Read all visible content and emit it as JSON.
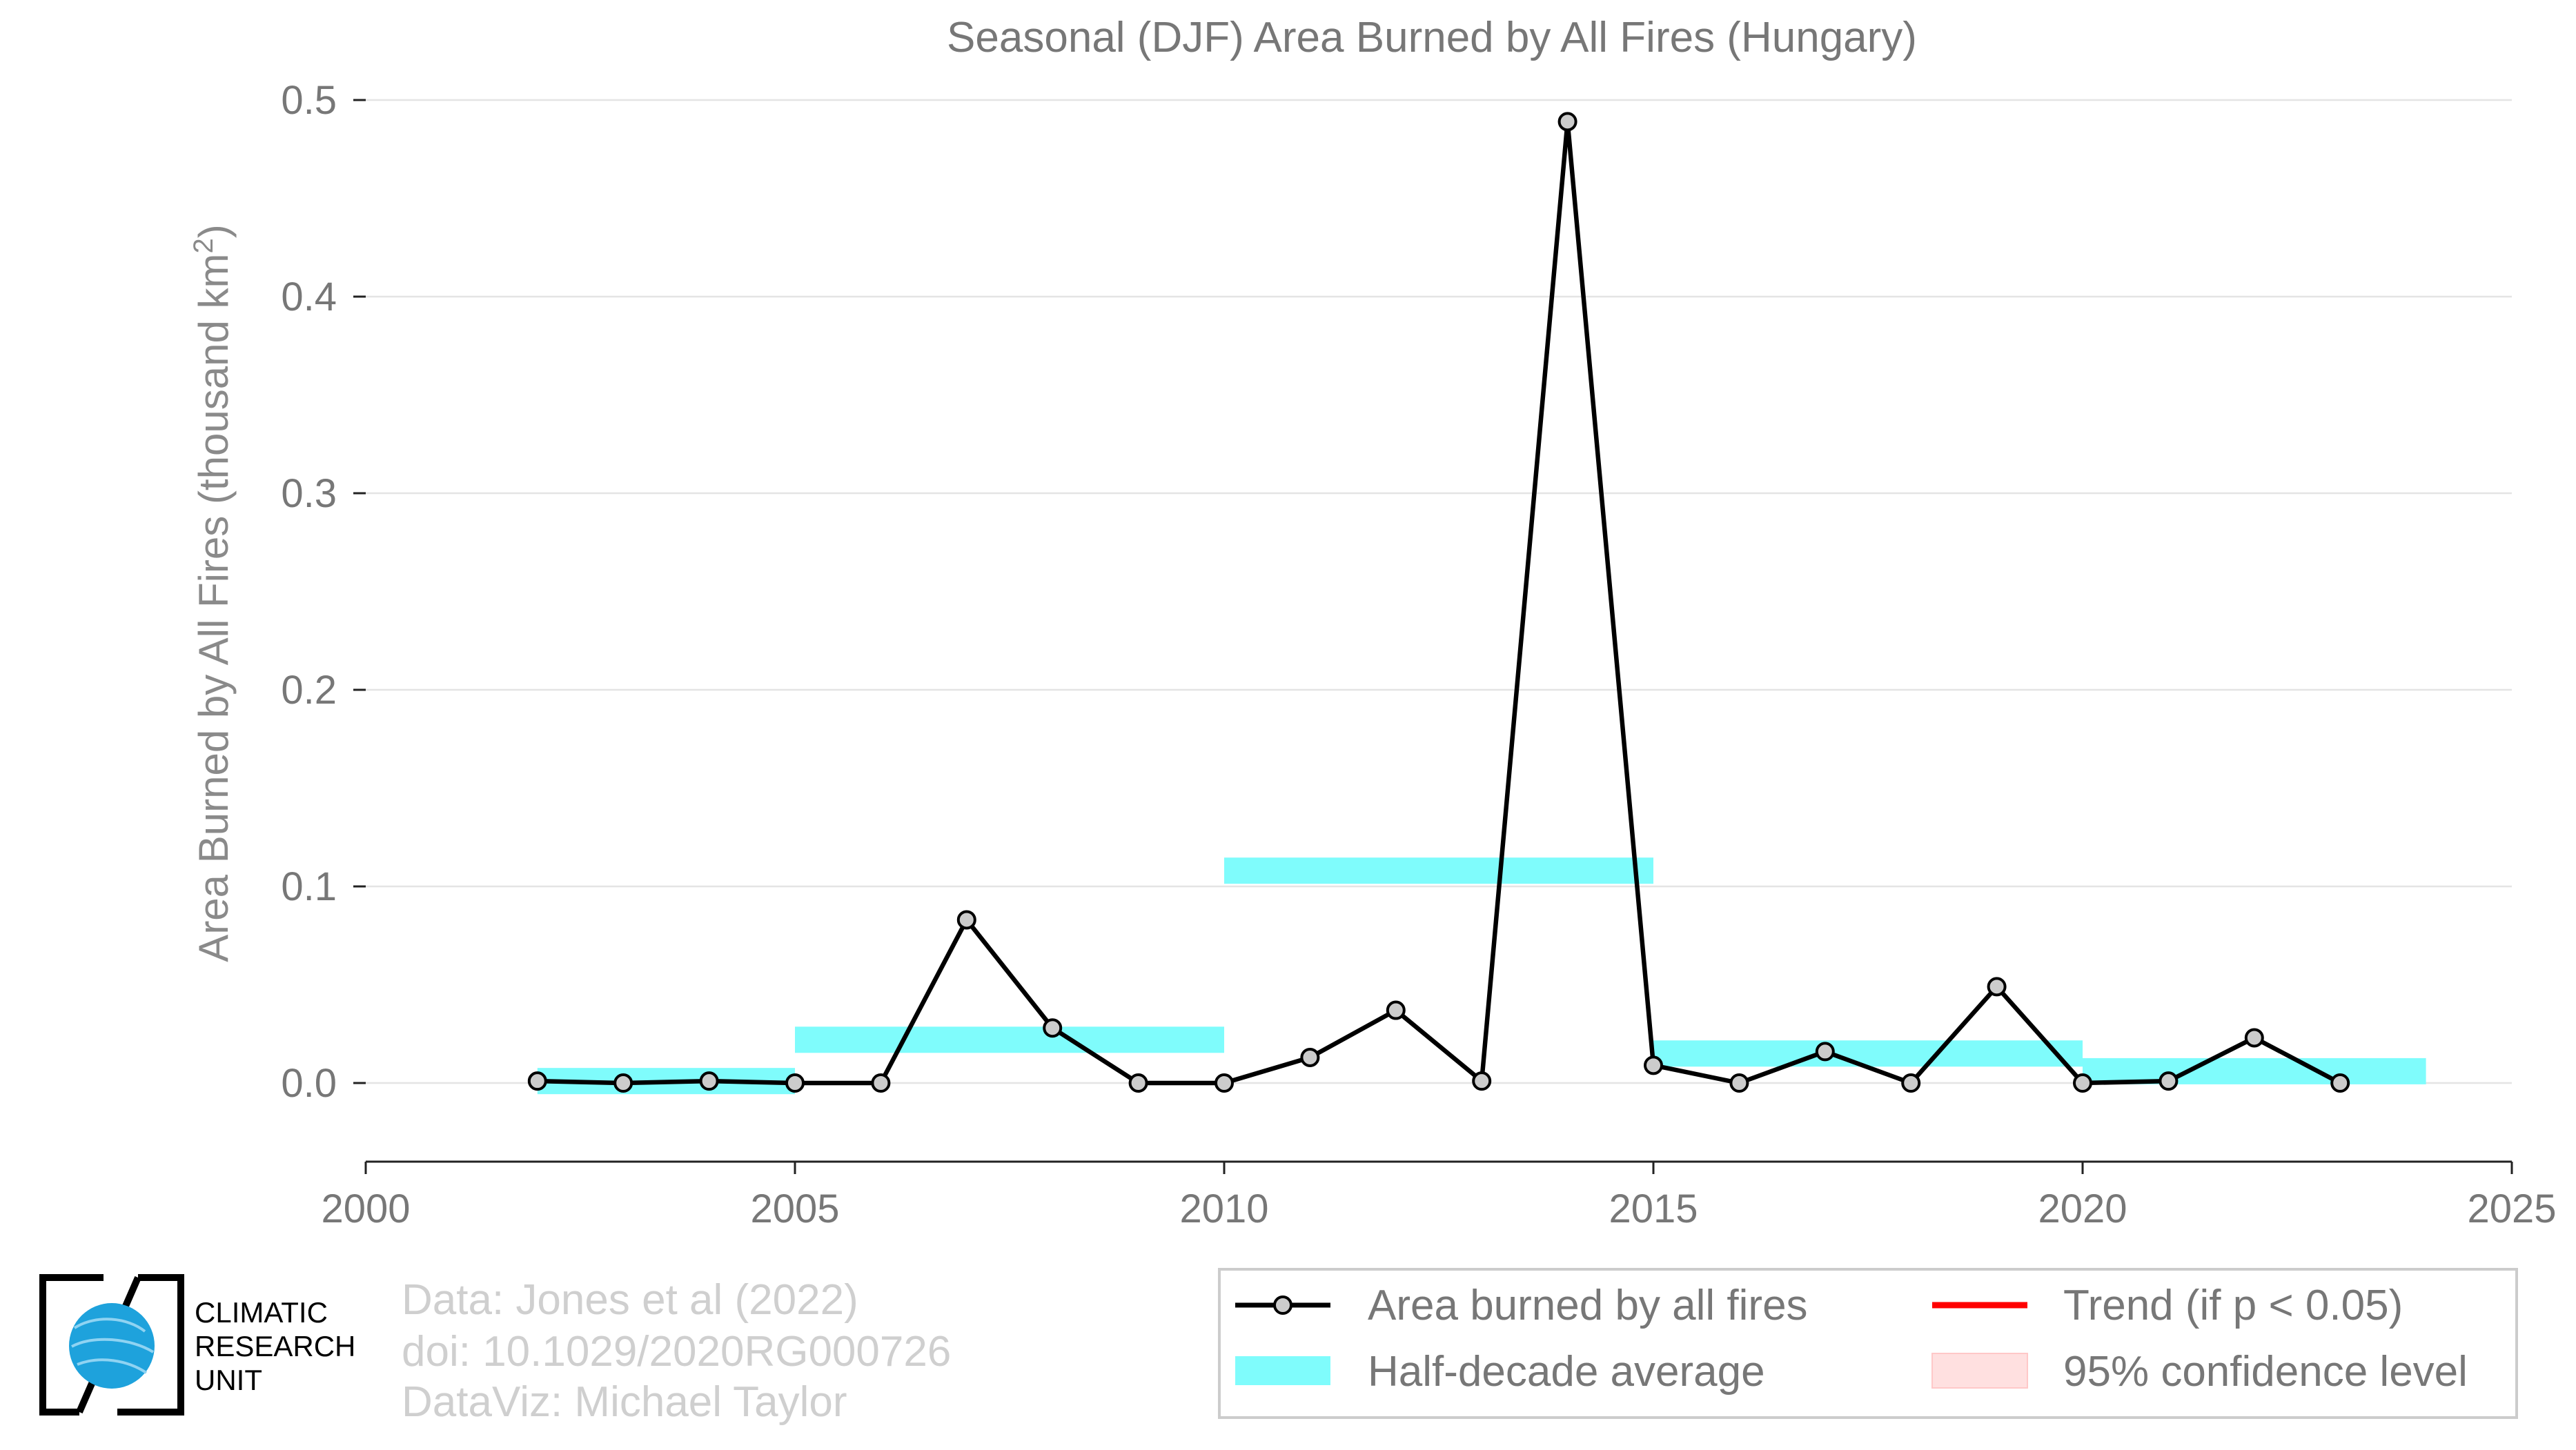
{
  "chart_data": {
    "type": "line",
    "title": "Seasonal (DJF) Area Burned by All Fires (Hungary)",
    "ylabel": "Area Burned by All Fires (thousand km²)",
    "ylabel_parts": {
      "main": "Area Burned by All Fires (thousand km",
      "sup": "2",
      "end": ")"
    },
    "xlabel": "",
    "xlim": [
      2000,
      2025
    ],
    "ylim": [
      -0.04,
      0.5
    ],
    "x_ticks": [
      2000,
      2005,
      2010,
      2015,
      2020,
      2025
    ],
    "x_tick_labels": [
      "2000",
      "2005",
      "2010",
      "2015",
      "2020",
      "2025"
    ],
    "y_ticks": [
      0.0,
      0.1,
      0.2,
      0.3,
      0.4,
      0.5
    ],
    "y_tick_labels": [
      "0.0",
      "0.1",
      "0.2",
      "0.3",
      "0.4",
      "0.5"
    ],
    "grid": "horizontal",
    "series": [
      {
        "name": "Area burned by all fires",
        "color": "#000000",
        "marker_fill": "#cccccc",
        "x": [
          2002,
          2003,
          2004,
          2005,
          2006,
          2007,
          2008,
          2009,
          2010,
          2011,
          2012,
          2013,
          2014,
          2015,
          2016,
          2017,
          2018,
          2019,
          2020,
          2021,
          2022,
          2023
        ],
        "y": [
          0.001,
          0.0,
          0.001,
          0.0,
          0.0,
          0.083,
          0.028,
          0.0,
          0.0,
          0.013,
          0.037,
          0.001,
          0.489,
          0.009,
          0.0,
          0.016,
          0.0,
          0.049,
          0.0,
          0.001,
          0.023,
          0.0
        ]
      }
    ],
    "half_decade_averages": {
      "name": "Half-decade average",
      "color": "#7ffcfc",
      "segments": [
        {
          "x_start": 2002,
          "x_end": 2005,
          "y": 0.001
        },
        {
          "x_start": 2005,
          "x_end": 2010,
          "y": 0.022
        },
        {
          "x_start": 2010,
          "x_end": 2015,
          "y": 0.108
        },
        {
          "x_start": 2015,
          "x_end": 2020,
          "y": 0.015
        },
        {
          "x_start": 2020,
          "x_end": 2024,
          "y": 0.006
        }
      ]
    },
    "legend": {
      "position": "bottom-right",
      "items": [
        {
          "label": "Area burned by all fires",
          "kind": "line-marker",
          "color": "#000000"
        },
        {
          "label": "Trend (if p < 0.05)",
          "kind": "line",
          "color": "#ff0000"
        },
        {
          "label": "Half-decade average",
          "kind": "band",
          "color": "#7ffcfc"
        },
        {
          "label": "95% confidence level",
          "kind": "patch",
          "color": "#ffe0e0"
        }
      ]
    }
  },
  "credits": {
    "data_source": "Data: Jones et al (2022)",
    "doi": "doi: 10.1029/2020RG000726",
    "dataviz": "DataViz: Michael Taylor"
  },
  "logo": {
    "icon": "globe-icon",
    "globe_color": "#1ea2dc",
    "lines": [
      "CLIMATIC",
      "RESEARCH",
      "UNIT"
    ]
  }
}
